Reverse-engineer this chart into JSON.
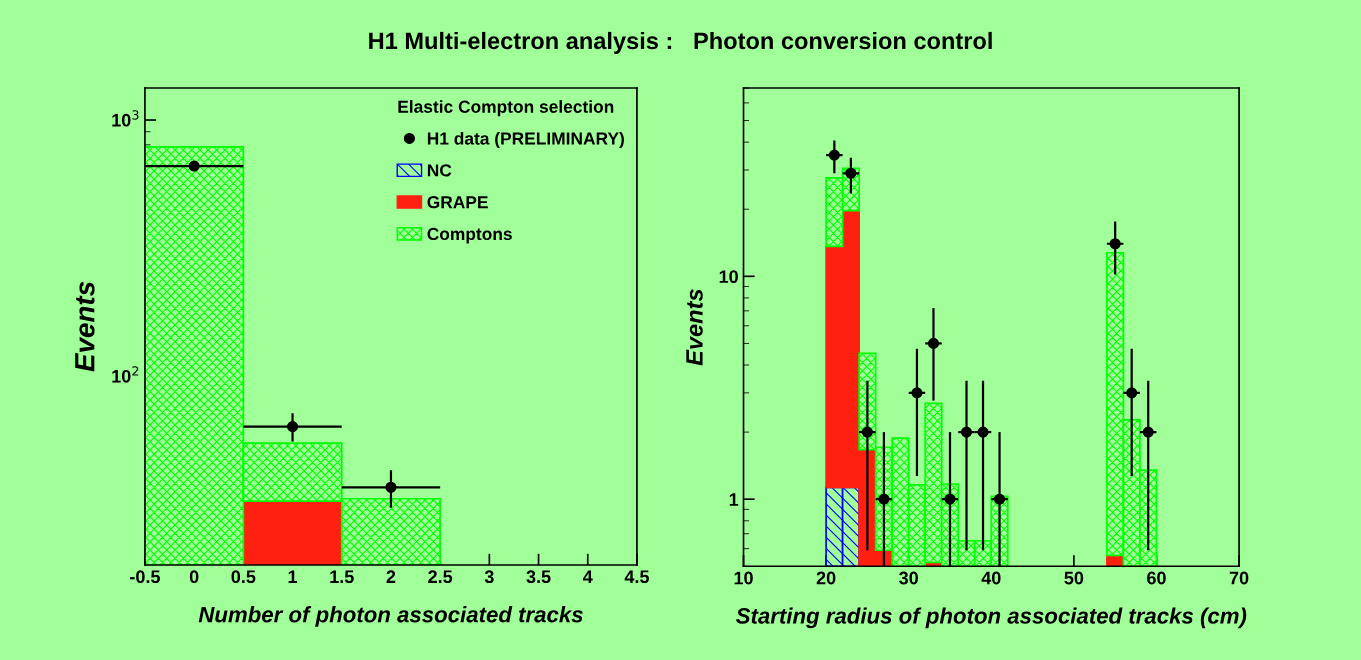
{
  "chart_data": [
    {
      "type": "bar",
      "title": "H1 Multi-electron analysis :   Photon conversion control",
      "xlabel": "Number of photon associated tracks",
      "ylabel": "Events",
      "legend_title": "Elastic Compton selection",
      "legend": "top right",
      "log": "y",
      "stacked": true,
      "grid": false,
      "x": [
        0,
        1,
        2
      ],
      "xlim": [
        -0.5,
        4.5
      ],
      "xticks": [
        -0.5,
        0,
        0.5,
        1,
        1.5,
        2,
        2.5,
        3,
        3.5,
        4,
        4.5
      ],
      "ylim": [
        18.3,
        1334
      ],
      "yticks": [
        {
          "value": 100,
          "label": "10$^{2}$"
        },
        {
          "value": 1000,
          "label": "10$^{3}$"
        }
      ],
      "series": [
        {
          "name": "NC",
          "color": "#0000ff",
          "values": [
            null,
            null,
            null
          ]
        },
        {
          "name": "GRAPE",
          "color": "#ff2010",
          "values": [
            null,
            32.5,
            null
          ]
        },
        {
          "name": "Comptons",
          "color": "#00ff00",
          "values": [
            785,
            22.2,
            33.2
          ]
        },
        {
          "name": "H1 data (PRELIMINARY)",
          "type": "scatter",
          "marker": "circle",
          "color": "#000000",
          "x": [
            0,
            1,
            2
          ],
          "values": [
            661,
            63.5,
            36.8
          ],
          "errors": [
            null,
            [
              55.5,
              71.6
            ],
            [
              30.6,
              42.9
            ]
          ],
          "xerrors": [
            0.5,
            0.5,
            0.5
          ]
        }
      ]
    },
    {
      "type": "bar",
      "xlabel": "Starting radius of photon associated tracks (cm)",
      "ylabel": "Events",
      "legend": false,
      "log": "y",
      "stacked": true,
      "grid": false,
      "x": [
        21,
        23,
        25,
        27,
        29,
        31,
        33,
        35,
        37,
        39,
        41,
        43,
        45,
        47,
        49,
        51,
        53,
        55,
        57,
        59
      ],
      "xlim": [
        10,
        70
      ],
      "xticks": [
        10,
        20,
        30,
        40,
        50,
        60,
        70
      ],
      "ylim": [
        0.5,
        70
      ],
      "yticks": [
        1,
        10
      ],
      "series": [
        {
          "color": "#0000ff",
          "values": [
            1.13,
            1.13,
            null,
            null,
            null,
            null,
            null,
            null,
            null,
            null,
            null,
            null,
            null,
            null,
            null,
            null,
            null,
            null,
            null,
            null
          ]
        },
        {
          "color": "#ff2010",
          "values": [
            12.5,
            18.6,
            1.67,
            0.59,
            null,
            null,
            0.52,
            null,
            null,
            null,
            null,
            null,
            null,
            null,
            null,
            null,
            null,
            0.56,
            null,
            null
          ]
        },
        {
          "color": "#00ff00",
          "values": [
            14.0,
            10.8,
            2.84,
            1.12,
            1.88,
            1.16,
            2.17,
            1.17,
            0.65,
            0.65,
            1.03,
            null,
            null,
            null,
            null,
            null,
            null,
            12.2,
            2.27,
            1.35
          ]
        },
        {
          "type": "scatter",
          "marker": "circle",
          "color": "#000000",
          "x": [
            21,
            23,
            25,
            27,
            31,
            33,
            35,
            37,
            39,
            41,
            55,
            57,
            59
          ],
          "values": [
            35,
            29,
            2,
            1,
            3,
            5,
            1,
            2,
            2,
            1,
            14,
            3,
            2
          ],
          "errors": [
            [
              29.0,
              40.7
            ],
            [
              23.5,
              34.0
            ],
            [
              0.59,
              3.4
            ],
            [
              0.5,
              2.0
            ],
            [
              1.27,
              4.73
            ],
            [
              2.77,
              7.2
            ],
            [
              0.5,
              2.0
            ],
            [
              0.59,
              3.4
            ],
            [
              0.59,
              3.4
            ],
            [
              0.5,
              2.0
            ],
            [
              10.2,
              17.6
            ],
            [
              1.27,
              4.73
            ],
            [
              0.59,
              3.4
            ]
          ],
          "xerrors": [
            1,
            1,
            1,
            1,
            1,
            1,
            1,
            1,
            1,
            1,
            1,
            1,
            1
          ]
        }
      ]
    }
  ]
}
